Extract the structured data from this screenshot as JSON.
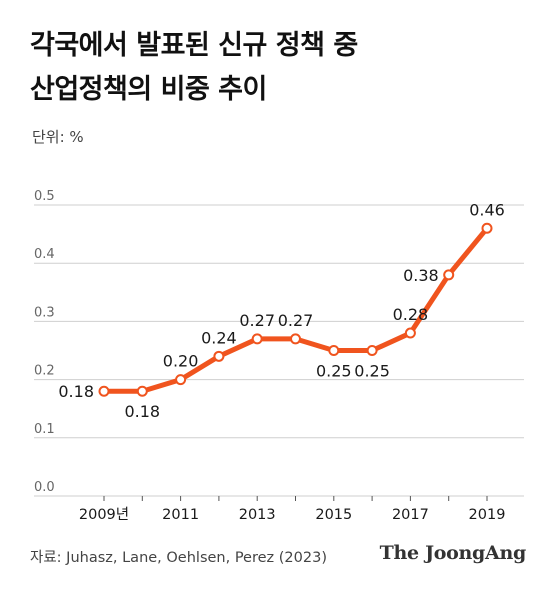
{
  "title_lines": [
    "각국에서 발표된 신규 정책 중",
    "산업정책의 비중 추이"
  ],
  "unit_label": "단위: %",
  "source": "자료: Juhasz, Lane, Oehlsen, Perez (2023)",
  "brand": "The JoongAng",
  "colors": {
    "line": "#f0541e",
    "grid": "#cfcfcf",
    "text": "#1a1a1a",
    "axis_text": "#666666"
  },
  "chart_data": {
    "type": "line",
    "title": "각국에서 발표된 신규 정책 중 산업정책의 비중 추이",
    "ylabel": "단위: %",
    "x": [
      2009,
      2010,
      2011,
      2012,
      2013,
      2014,
      2015,
      2016,
      2017,
      2018,
      2019
    ],
    "xticks": [
      2009,
      2011,
      2013,
      2015,
      2017,
      2019
    ],
    "xtick_labels": [
      "2009년",
      "2011",
      "2013",
      "2015",
      "2017",
      "2019"
    ],
    "series": [
      {
        "values": [
          0.18,
          0.18,
          0.2,
          0.24,
          0.27,
          0.27,
          0.25,
          0.25,
          0.28,
          0.38,
          0.46
        ],
        "value_labels": [
          "0.18",
          "0.18",
          "0.20",
          "0.24",
          "0.27",
          "0.27",
          "0.25",
          "0.25",
          "0.28",
          "0.38",
          "0.46"
        ],
        "label_position": [
          "left",
          "below",
          "above",
          "above",
          "above",
          "above",
          "below",
          "below",
          "above",
          "left",
          "above"
        ]
      }
    ],
    "yticks": [
      0.0,
      0.1,
      0.2,
      0.3,
      0.4,
      0.5
    ],
    "ytick_labels": [
      "0.0",
      "0.1",
      "0.2",
      "0.3",
      "0.4",
      "0.5"
    ],
    "ylim": [
      0,
      0.5
    ],
    "xlim": [
      2009,
      2019
    ],
    "grid": true,
    "markers": "hollow-circle"
  }
}
